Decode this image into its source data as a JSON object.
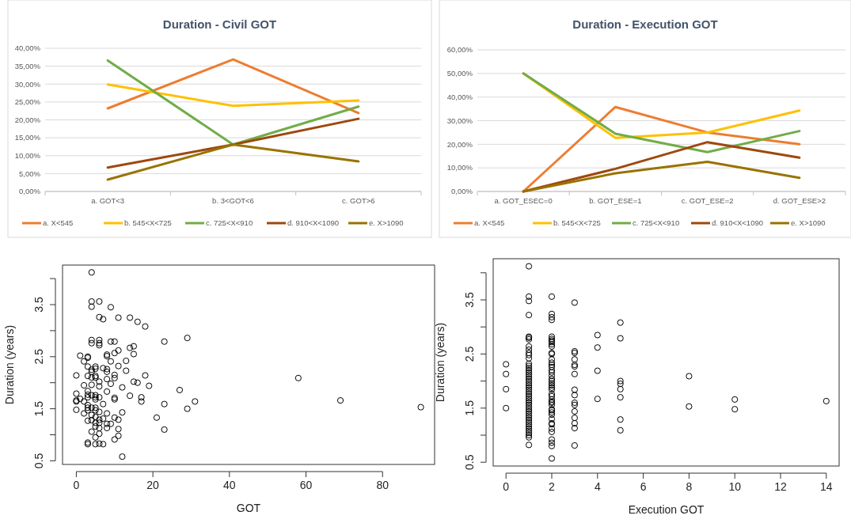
{
  "chart_data": [
    {
      "type": "line",
      "title": "Duration - Civil GOT",
      "categories": [
        "a. GOT<3",
        "b. 3<GOT<6",
        "c. GOT>6"
      ],
      "series": [
        {
          "name": "a. X<545",
          "color": "#ed7d31",
          "values": [
            23.2,
            36.9,
            21.9
          ]
        },
        {
          "name": "b. 545<X<725",
          "color": "#ffc000",
          "values": [
            29.9,
            23.9,
            25.4
          ]
        },
        {
          "name": "c. 725<X<910",
          "color": "#70ad47",
          "values": [
            36.6,
            13.1,
            23.7
          ]
        },
        {
          "name": "d. 910<X<1090",
          "color": "#9e480e",
          "values": [
            6.7,
            13.1,
            20.3
          ]
        },
        {
          "name": "e. X>1090",
          "color": "#997300",
          "values": [
            3.3,
            13.1,
            8.4
          ]
        }
      ],
      "ylim": [
        0,
        40
      ],
      "yticks": [
        {
          "value": 0,
          "label": "0,00%"
        },
        {
          "value": 5,
          "label": "5,00%"
        },
        {
          "value": 10,
          "label": "10,00%"
        },
        {
          "value": 15,
          "label": "15,00%"
        },
        {
          "value": 20,
          "label": "20,00%"
        },
        {
          "value": 25,
          "label": "25,00%"
        },
        {
          "value": 30,
          "label": "30,00%"
        },
        {
          "value": 35,
          "label": "35,00%"
        },
        {
          "value": 40,
          "label": "40,00%"
        }
      ],
      "grid": "y",
      "legend": "bottom"
    },
    {
      "type": "line",
      "title": "Duration - Execution GOT",
      "categories": [
        "a. GOT_ESEC=0",
        "b. GOT_ESE=1",
        "c. GOT_ESE=2",
        "d. GOT_ESE>2"
      ],
      "series": [
        {
          "name": "a. X<545",
          "color": "#ed7d31",
          "values": [
            0,
            35.8,
            25,
            20
          ]
        },
        {
          "name": "b. 545<X<725",
          "color": "#ffc000",
          "values": [
            50,
            22.7,
            25,
            34.3
          ]
        },
        {
          "name": "c. 725<X<910",
          "color": "#70ad47",
          "values": [
            50,
            24.5,
            16.7,
            25.6
          ]
        },
        {
          "name": "d. 910<X<1090",
          "color": "#9e480e",
          "values": [
            0,
            9.6,
            20.9,
            14.3
          ]
        },
        {
          "name": "e. X>1090",
          "color": "#997300",
          "values": [
            0,
            7.7,
            12.6,
            5.8
          ]
        }
      ],
      "ylim": [
        0,
        60
      ],
      "yticks": [
        {
          "value": 0,
          "label": "0,00%"
        },
        {
          "value": 10,
          "label": "10,00%"
        },
        {
          "value": 20,
          "label": "20,00%"
        },
        {
          "value": 30,
          "label": "30,00%"
        },
        {
          "value": 40,
          "label": "40,00%"
        },
        {
          "value": 50,
          "label": "50,00%"
        },
        {
          "value": 60,
          "label": "60,00%"
        }
      ],
      "grid": "y",
      "legend": "bottom"
    },
    {
      "type": "scatter",
      "xlabel": "GOT",
      "ylabel": "Duration (years)",
      "color": "#000000",
      "marker": "circle",
      "x": [
        4,
        4,
        4,
        6,
        9,
        6,
        7,
        11,
        14,
        16,
        18,
        23,
        29,
        4,
        4,
        6,
        6,
        6,
        9,
        10,
        15,
        14,
        15,
        11,
        10,
        8,
        8,
        1,
        3,
        3,
        2,
        9,
        13,
        11,
        13,
        18,
        0,
        3,
        5,
        5,
        7,
        8,
        8,
        10,
        10,
        4,
        4,
        3,
        5,
        5,
        4,
        6,
        8,
        15,
        16,
        19,
        27,
        9,
        6,
        2,
        4,
        12,
        8,
        3,
        0,
        0,
        0,
        1,
        2,
        3,
        3,
        5,
        5,
        5,
        6,
        4,
        10,
        10,
        14,
        17,
        17,
        23,
        29,
        31,
        0,
        2,
        3,
        3,
        3,
        4,
        5,
        5,
        6,
        7,
        8,
        12,
        21,
        10,
        11,
        3,
        4,
        5,
        6,
        6,
        7,
        8,
        9,
        4,
        5,
        5,
        6,
        8,
        11,
        23,
        4,
        6,
        11,
        5,
        10,
        3,
        3,
        5,
        6,
        7,
        12,
        58,
        69,
        90
      ],
      "values": [
        4.12,
        3.56,
        3.46,
        3.56,
        3.45,
        3.26,
        3.22,
        3.25,
        3.25,
        3.17,
        3.08,
        2.79,
        2.86,
        2.82,
        2.76,
        2.82,
        2.76,
        2.72,
        2.79,
        2.79,
        2.7,
        2.67,
        2.55,
        2.62,
        2.57,
        2.54,
        2.51,
        2.52,
        2.5,
        2.48,
        2.41,
        2.41,
        2.42,
        2.32,
        2.23,
        2.14,
        2.14,
        2.31,
        2.31,
        2.27,
        2.28,
        2.26,
        2.21,
        2.15,
        2.09,
        2.25,
        2.21,
        2.13,
        2.13,
        2.1,
        2.1,
        2.02,
        2.07,
        2.02,
        2,
        1.94,
        1.86,
        1.98,
        1.93,
        1.95,
        1.96,
        1.91,
        1.83,
        1.84,
        1.79,
        1.66,
        1.64,
        1.69,
        1.64,
        1.77,
        1.72,
        1.76,
        1.72,
        1.68,
        1.72,
        1.76,
        1.71,
        1.68,
        1.75,
        1.72,
        1.64,
        1.59,
        1.5,
        1.64,
        1.48,
        1.41,
        1.57,
        1.52,
        1.47,
        1.52,
        1.52,
        1.47,
        1.44,
        1.59,
        1.41,
        1.43,
        1.33,
        1.33,
        1.29,
        1.27,
        1.28,
        1.23,
        1.29,
        1.23,
        1.31,
        1.21,
        1.21,
        1.38,
        1.34,
        1.16,
        1.13,
        1.13,
        1.11,
        1.1,
        1.06,
        1.02,
        0.98,
        0.95,
        0.91,
        0.85,
        0.82,
        0.82,
        0.83,
        0.82,
        0.58,
        2.09,
        1.66,
        1.53
      ],
      "xlim": [
        -3.6,
        93.6
      ],
      "xticks": [
        0,
        20,
        40,
        60,
        80
      ],
      "ylim": [
        0.43,
        4.26
      ],
      "yticks": [
        0.5,
        {
          "value": 1,
          "label": null
        },
        1.5,
        {
          "value": 2,
          "label": null
        },
        2.5,
        {
          "value": 3,
          "label": null
        },
        3.5,
        {
          "value": 4,
          "label": null
        }
      ]
    },
    {
      "type": "scatter",
      "xlabel": "Execution GOT",
      "ylabel": "Duration (years)",
      "color": "#000000",
      "marker": "circle",
      "x": [
        0,
        0,
        0,
        0,
        1,
        1,
        1,
        1,
        1,
        1,
        1,
        1,
        1,
        1,
        1,
        1,
        1,
        1,
        1,
        1,
        1,
        1,
        1,
        1,
        1,
        1,
        1,
        1,
        1,
        1,
        1,
        1,
        1,
        1,
        1,
        1,
        1,
        1,
        1,
        1,
        1,
        1,
        1,
        1,
        1,
        1,
        1,
        1,
        1,
        1,
        1,
        1,
        2,
        2,
        2,
        2,
        2,
        2,
        2,
        2,
        2,
        2,
        2,
        2,
        2,
        2,
        2,
        2,
        2,
        2,
        2,
        2,
        2,
        2,
        2,
        2,
        2,
        2,
        2,
        2,
        2,
        2,
        2,
        2,
        2,
        2,
        2,
        2,
        2,
        2,
        2,
        2,
        2,
        2,
        2,
        2,
        3,
        3,
        3,
        3,
        3,
        3,
        3,
        3,
        3,
        3,
        3,
        3,
        3,
        3,
        3,
        3,
        4,
        4,
        4,
        4,
        5,
        5,
        5,
        5,
        5,
        5,
        5,
        5,
        8,
        8,
        10,
        10,
        14
      ],
      "values": [
        2.31,
        2.13,
        1.85,
        1.5,
        4.12,
        3.56,
        3.48,
        3.22,
        2.82,
        2.8,
        2.77,
        2.64,
        2.58,
        2.52,
        2.48,
        2.42,
        2.32,
        2.28,
        2.24,
        2.2,
        2.16,
        2.12,
        2.08,
        2.04,
        2.0,
        1.96,
        1.92,
        1.88,
        1.84,
        1.8,
        1.76,
        1.72,
        1.68,
        1.64,
        1.6,
        1.56,
        1.52,
        1.48,
        1.44,
        1.4,
        1.36,
        1.32,
        1.28,
        1.24,
        1.2,
        1.16,
        1.12,
        1.08,
        1.04,
        1.0,
        0.96,
        0.82,
        3.56,
        3.24,
        3.18,
        3.13,
        2.82,
        2.78,
        2.75,
        2.72,
        2.68,
        2.64,
        2.52,
        2.5,
        2.4,
        2.34,
        2.3,
        2.26,
        2.2,
        2.16,
        2.1,
        2.04,
        2.0,
        1.96,
        1.92,
        1.88,
        1.84,
        1.76,
        1.72,
        1.66,
        1.62,
        1.6,
        1.56,
        1.48,
        1.46,
        1.42,
        1.38,
        1.3,
        1.22,
        1.2,
        1.12,
        1.06,
        0.92,
        0.86,
        0.8,
        0.57,
        3.45,
        2.55,
        2.52,
        2.4,
        2.3,
        2.27,
        2.13,
        1.84,
        1.74,
        1.6,
        1.56,
        1.44,
        1.32,
        1.22,
        1.13,
        0.81,
        2.85,
        2.62,
        2.19,
        1.67,
        3.08,
        2.79,
        2.0,
        1.95,
        1.85,
        1.7,
        1.29,
        1.09,
        2.09,
        1.53,
        1.66,
        1.48,
        1.63
      ],
      "xlim": [
        -0.56,
        14.56
      ],
      "xticks": [
        0,
        2,
        4,
        6,
        8,
        10,
        12,
        14
      ],
      "ylim": [
        0.43,
        4.26
      ],
      "yticks": [
        0.5,
        {
          "value": 1,
          "label": null
        },
        1.5,
        {
          "value": 2,
          "label": null
        },
        2.5,
        {
          "value": 3,
          "label": null
        },
        3.5,
        {
          "value": 4,
          "label": null
        }
      ]
    }
  ]
}
